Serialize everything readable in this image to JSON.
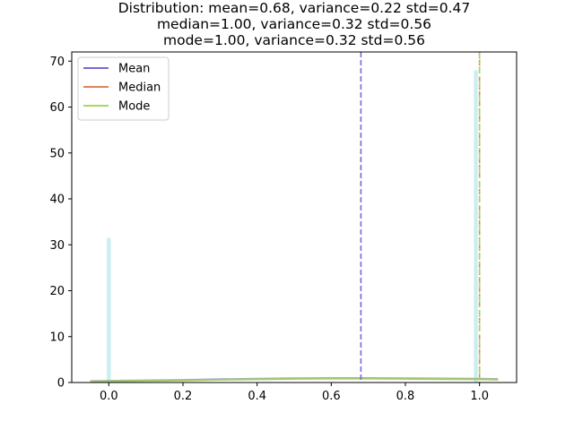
{
  "chart_data": {
    "type": "bar",
    "title_lines": [
      "Distribution: mean=0.68, variance=0.22 std=0.47",
      "median=1.00, variance=0.32 std=0.56",
      "mode=1.00, variance=0.32 std=0.56"
    ],
    "xlim": [
      -0.1,
      1.1
    ],
    "ylim": [
      0,
      72
    ],
    "x_ticks": [
      0.0,
      0.2,
      0.4,
      0.6,
      0.8,
      1.0
    ],
    "x_tick_labels": [
      "0.0",
      "0.2",
      "0.4",
      "0.6",
      "0.8",
      "1.0"
    ],
    "y_ticks": [
      0,
      10,
      20,
      30,
      40,
      50,
      60,
      70
    ],
    "y_tick_labels": [
      "0",
      "10",
      "20",
      "30",
      "40",
      "50",
      "60",
      "70"
    ],
    "bars": [
      {
        "x": 0.0,
        "width": 0.01,
        "value": 31.5
      },
      {
        "x": 0.99,
        "width": 0.01,
        "value": 68.0
      }
    ],
    "bar_color": "#c9eef0",
    "density_curve": {
      "x": [
        -0.05,
        0.0,
        0.1,
        0.2,
        0.3,
        0.4,
        0.5,
        0.6,
        0.7,
        0.8,
        0.9,
        1.0,
        1.05
      ],
      "y": [
        0.3,
        0.35,
        0.45,
        0.55,
        0.7,
        0.8,
        0.9,
        0.95,
        0.95,
        0.9,
        0.85,
        0.8,
        0.75
      ],
      "colors": [
        "#9b9be0",
        "#a3c96a"
      ]
    },
    "vlines": [
      {
        "name": "Mean",
        "x": 0.68,
        "color": "#7b68d6",
        "style": "dashed"
      },
      {
        "name": "Median",
        "x": 1.0,
        "color": "#e08060",
        "style": "dashed"
      },
      {
        "name": "Mode",
        "x": 1.0,
        "color": "#a8d860",
        "style": "dashdot"
      }
    ],
    "legend": {
      "placement": "top-left",
      "entries": [
        {
          "label": "Mean",
          "color": "#7b68d6"
        },
        {
          "label": "Median",
          "color": "#e08060"
        },
        {
          "label": "Mode",
          "color": "#a8d860"
        }
      ]
    },
    "grid": false
  }
}
